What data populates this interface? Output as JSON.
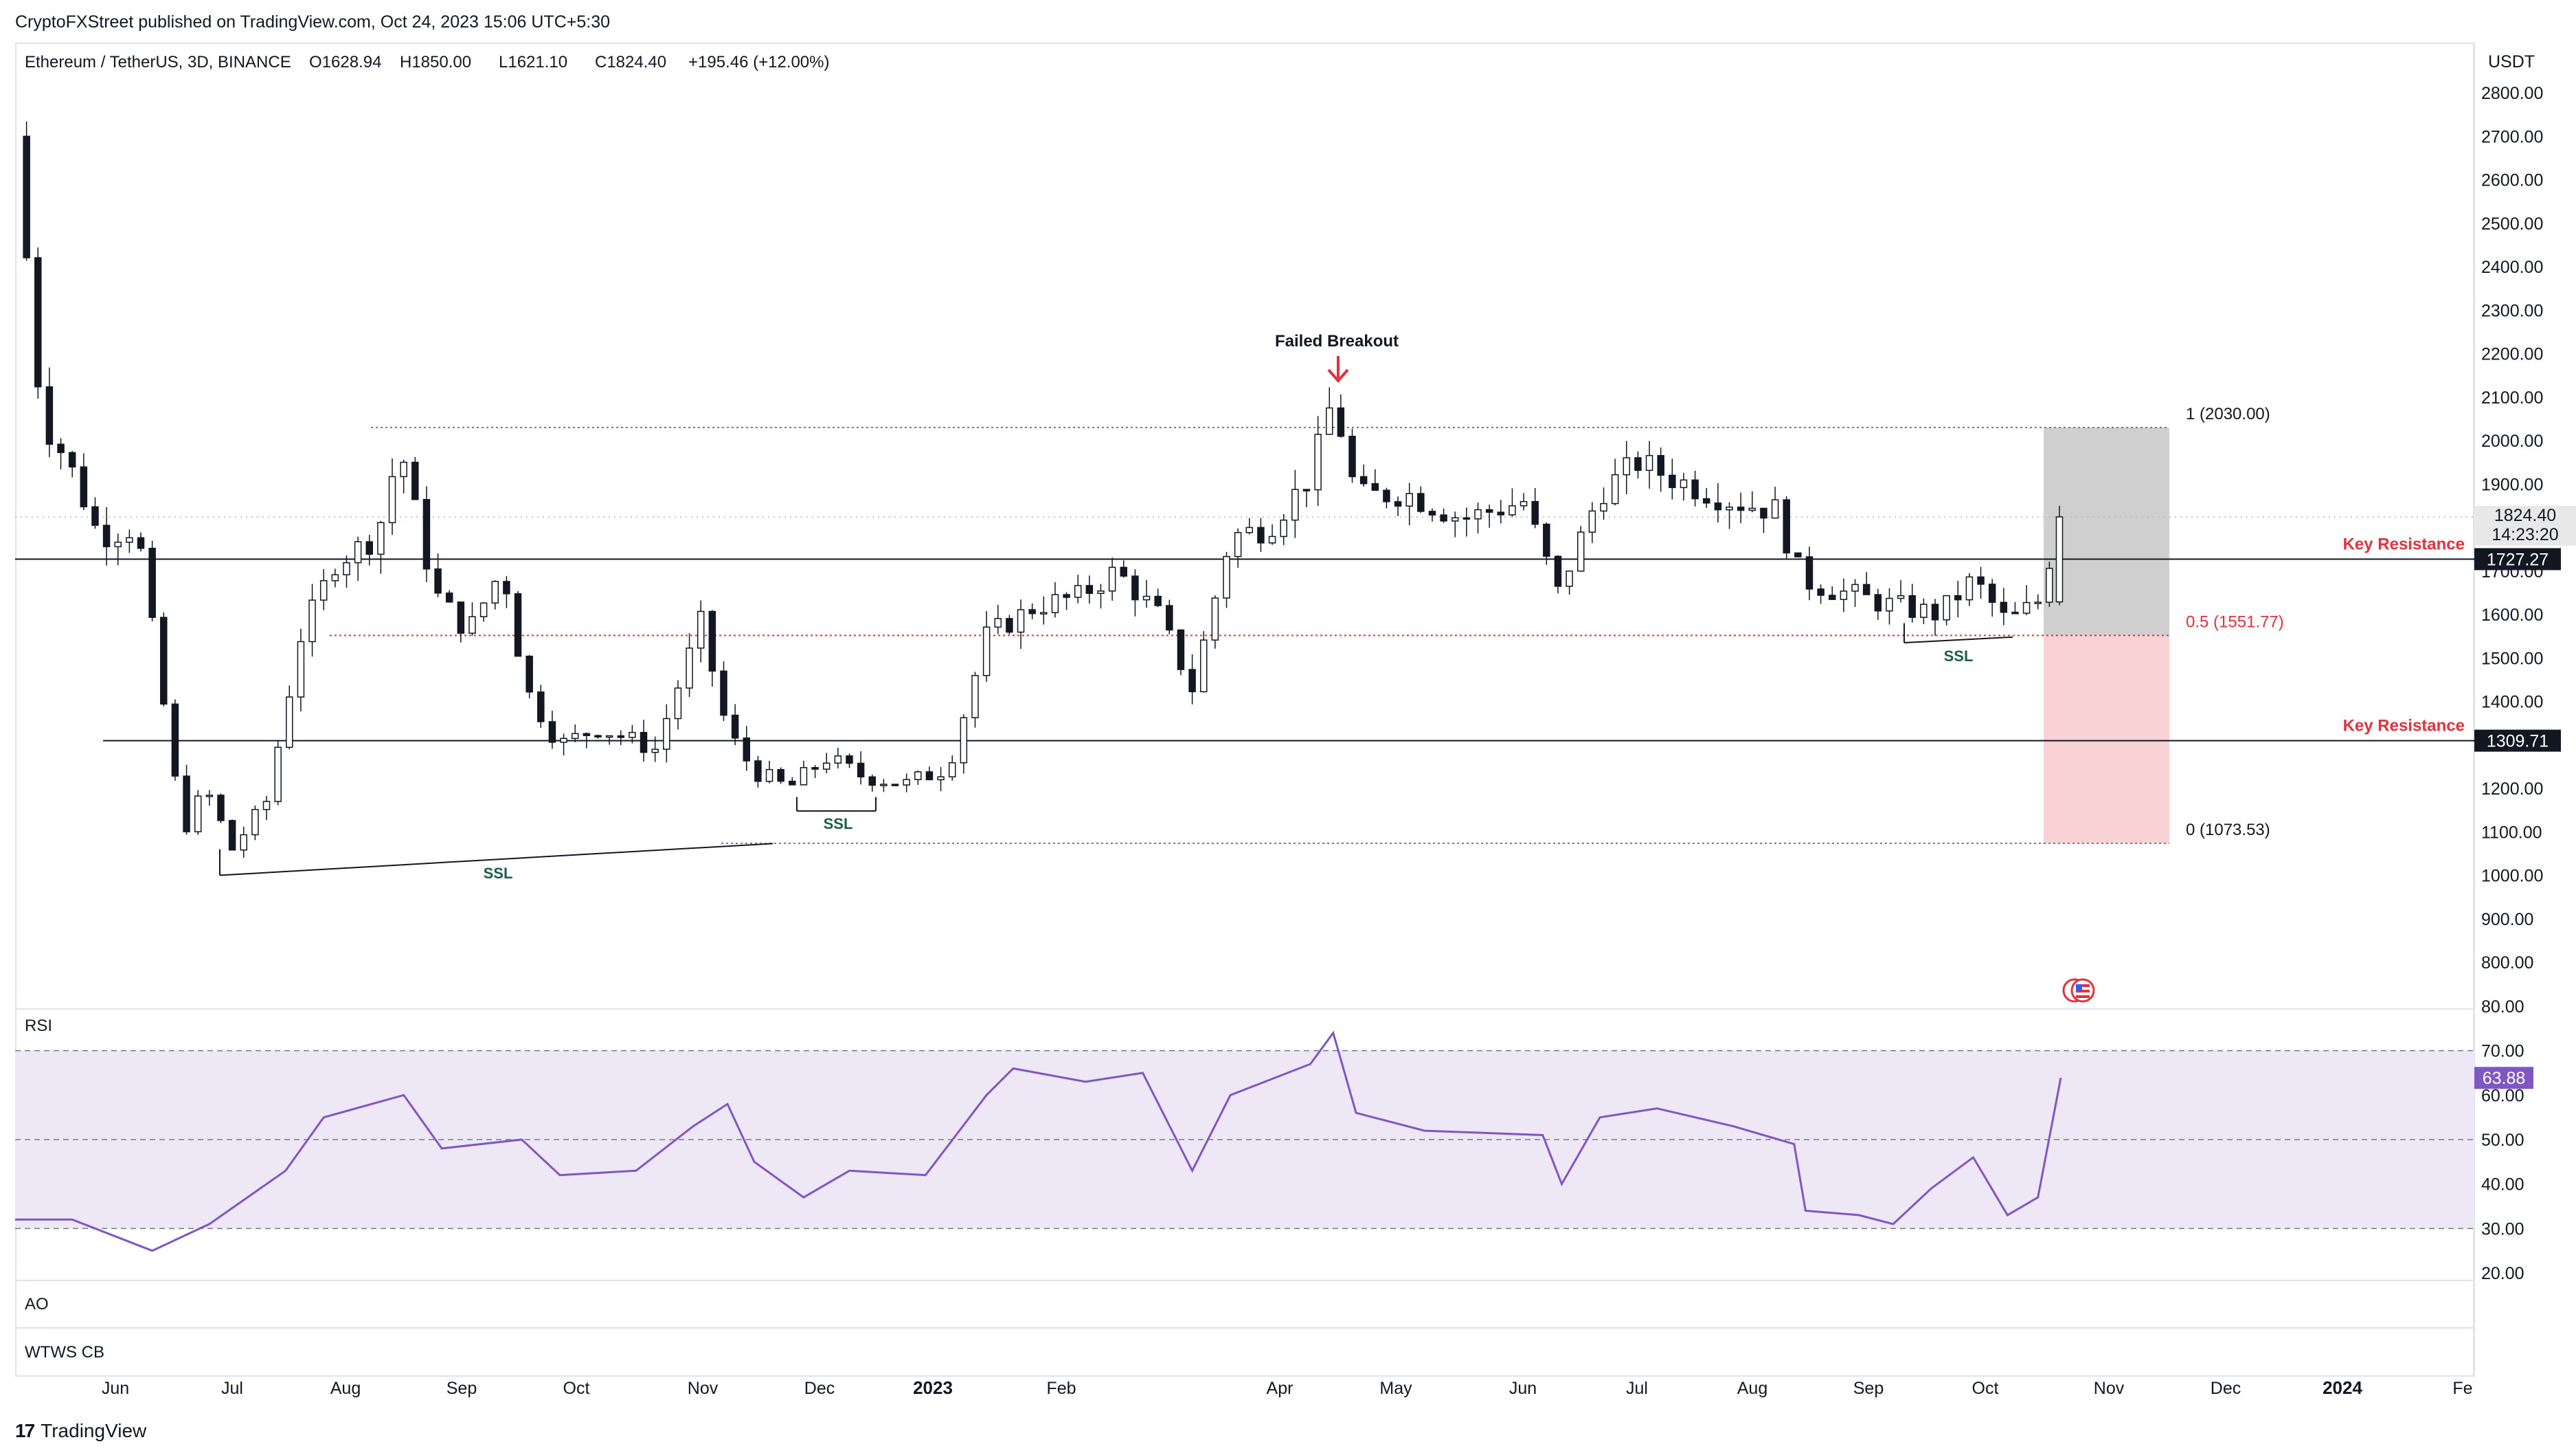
{
  "publisher_line": "CryptoFXStreet published on TradingView.com, Oct 24, 2023 15:06 UTC+5:30",
  "brand": {
    "logo": "17",
    "name": "TradingView"
  },
  "legend": {
    "symbol": "Ethereum / TetherUS, 3D, BINANCE",
    "open": "O1628.94",
    "high": "H1850.00",
    "low": "L1621.10",
    "close": "C1824.40",
    "change": "+195.46 (+12.00%)"
  },
  "price_axis": {
    "currency": "USDT",
    "ticks": [
      "2800.00",
      "2700.00",
      "2600.00",
      "2500.00",
      "2400.00",
      "2300.00",
      "2200.00",
      "2100.00",
      "2000.00",
      "1900.00",
      "1800.00",
      "1700.00",
      "1600.00",
      "1500.00",
      "1400.00",
      "1300.00",
      "1200.00",
      "1100.00",
      "1000.00",
      "900.00",
      "800.00"
    ],
    "last_price": "1824.40",
    "countdown": "14:23:20",
    "level_badges": [
      "1727.27",
      "1309.71"
    ]
  },
  "annotations": {
    "failed_breakout": "Failed Breakout",
    "key_resistance_upper": "Key Resistance",
    "key_resistance_lower": "Key Resistance",
    "ssl_labels": [
      "SSL",
      "SSL",
      "SSL"
    ],
    "fib_1": "1 (2030.00)",
    "fib_05": "0.5 (1551.77)",
    "fib_0": "0 (1073.53)"
  },
  "rsi": {
    "label": "RSI",
    "ticks": [
      "80.00",
      "70.00",
      "60.00",
      "50.00",
      "40.00",
      "30.00",
      "20.00"
    ],
    "current": "63.88"
  },
  "ao_label": "AO",
  "wtws_label": "WTWS CB",
  "time_axis": [
    "Jun",
    "Jul",
    "Aug",
    "Sep",
    "Oct",
    "Nov",
    "Dec",
    "2023",
    "Feb",
    "Apr",
    "May",
    "Jun",
    "Jul",
    "Aug",
    "Sep",
    "Oct",
    "Nov",
    "Dec",
    "2024",
    "Fe"
  ],
  "colors": {
    "accent_red": "#e0323c",
    "ssl_green": "#1b5e4a",
    "rsi_line": "#7e57c2",
    "rsi_band": "#ede7f6",
    "tp_zone": "#cfcfcf",
    "sl_zone": "#f9d2d5"
  },
  "chart_data": [
    {
      "type": "candlestick",
      "title": "Ethereum / TetherUS, 3D, BINANCE",
      "ylabel": "USDT",
      "ylim": [
        770,
        2870
      ],
      "x_range": [
        "2022-05-05",
        "2024-02-01"
      ],
      "key_levels": [
        {
          "label": "Key Resistance",
          "value": 1727.27
        },
        {
          "label": "Key Resistance",
          "value": 1309.71
        }
      ],
      "fib_levels": [
        {
          "label": "1",
          "value": 2030.0
        },
        {
          "label": "0.5",
          "value": 1551.77
        },
        {
          "label": "0",
          "value": 1073.53
        }
      ],
      "last": {
        "open": 1628.94,
        "high": 1850.0,
        "low": 1621.1,
        "close": 1824.4
      },
      "close_path": [
        [
          "2022-05-05",
          2700
        ],
        [
          "2022-05-12",
          2050
        ],
        [
          "2022-05-19",
          1950
        ],
        [
          "2022-05-27",
          1780
        ],
        [
          "2022-06-06",
          1800
        ],
        [
          "2022-06-12",
          1450
        ],
        [
          "2022-06-18",
          1100
        ],
        [
          "2022-06-24",
          1200
        ],
        [
          "2022-07-01",
          1060
        ],
        [
          "2022-07-10",
          1170
        ],
        [
          "2022-07-19",
          1550
        ],
        [
          "2022-07-28",
          1720
        ],
        [
          "2022-08-08",
          1780
        ],
        [
          "2022-08-14",
          1990
        ],
        [
          "2022-08-23",
          1650
        ],
        [
          "2022-09-01",
          1560
        ],
        [
          "2022-09-10",
          1710
        ],
        [
          "2022-09-16",
          1430
        ],
        [
          "2022-09-25",
          1300
        ],
        [
          "2022-10-05",
          1340
        ],
        [
          "2022-10-20",
          1290
        ],
        [
          "2022-11-01",
          1580
        ],
        [
          "2022-11-08",
          1330
        ],
        [
          "2022-11-15",
          1240
        ],
        [
          "2022-11-24",
          1200
        ],
        [
          "2022-12-04",
          1270
        ],
        [
          "2022-12-13",
          1230
        ],
        [
          "2022-12-25",
          1210
        ],
        [
          "2023-01-05",
          1250
        ],
        [
          "2023-01-15",
          1550
        ],
        [
          "2023-01-28",
          1620
        ],
        [
          "2023-02-08",
          1640
        ],
        [
          "2023-02-18",
          1700
        ],
        [
          "2023-03-01",
          1600
        ],
        [
          "2023-03-10",
          1430
        ],
        [
          "2023-03-20",
          1780
        ],
        [
          "2023-03-30",
          1800
        ],
        [
          "2023-04-10",
          1920
        ],
        [
          "2023-04-16",
          2100
        ],
        [
          "2023-04-22",
          1870
        ],
        [
          "2023-05-05",
          1880
        ],
        [
          "2023-05-20",
          1820
        ],
        [
          "2023-06-05",
          1860
        ],
        [
          "2023-06-14",
          1650
        ],
        [
          "2023-06-25",
          1880
        ],
        [
          "2023-07-05",
          1950
        ],
        [
          "2023-07-15",
          1910
        ],
        [
          "2023-07-30",
          1860
        ],
        [
          "2023-08-10",
          1840
        ],
        [
          "2023-08-17",
          1680
        ],
        [
          "2023-08-28",
          1650
        ],
        [
          "2023-09-10",
          1620
        ],
        [
          "2023-09-22",
          1600
        ],
        [
          "2023-10-01",
          1680
        ],
        [
          "2023-10-10",
          1580
        ],
        [
          "2023-10-18",
          1630
        ],
        [
          "2023-10-24",
          1824.4
        ]
      ]
    },
    {
      "type": "line",
      "title": "RSI",
      "ylim": [
        20,
        80
      ],
      "bands": [
        30,
        50,
        70
      ],
      "series": [
        {
          "name": "RSI",
          "values": [
            [
              "2022-05-05",
              32
            ],
            [
              "2022-05-20",
              32
            ],
            [
              "2022-06-10",
              25
            ],
            [
              "2022-06-25",
              31
            ],
            [
              "2022-07-15",
              43
            ],
            [
              "2022-07-25",
              55
            ],
            [
              "2022-08-15",
              60
            ],
            [
              "2022-08-25",
              48
            ],
            [
              "2022-09-15",
              50
            ],
            [
              "2022-09-25",
              42
            ],
            [
              "2022-10-15",
              43
            ],
            [
              "2022-10-30",
              53
            ],
            [
              "2022-11-08",
              58
            ],
            [
              "2022-11-15",
              45
            ],
            [
              "2022-11-28",
              37
            ],
            [
              "2022-12-10",
              43
            ],
            [
              "2022-12-30",
              42
            ],
            [
              "2023-01-15",
              60
            ],
            [
              "2023-01-22",
              66
            ],
            [
              "2023-02-10",
              63
            ],
            [
              "2023-02-25",
              65
            ],
            [
              "2023-03-10",
              43
            ],
            [
              "2023-03-20",
              60
            ],
            [
              "2023-04-10",
              67
            ],
            [
              "2023-04-16",
              74
            ],
            [
              "2023-04-22",
              56
            ],
            [
              "2023-05-10",
              52
            ],
            [
              "2023-06-10",
              51
            ],
            [
              "2023-06-15",
              40
            ],
            [
              "2023-06-25",
              55
            ],
            [
              "2023-07-10",
              57
            ],
            [
              "2023-07-30",
              53
            ],
            [
              "2023-08-15",
              49
            ],
            [
              "2023-08-18",
              34
            ],
            [
              "2023-09-01",
              33
            ],
            [
              "2023-09-10",
              31
            ],
            [
              "2023-09-20",
              39
            ],
            [
              "2023-10-01",
              46
            ],
            [
              "2023-10-10",
              33
            ],
            [
              "2023-10-18",
              37
            ],
            [
              "2023-10-24",
              63.88
            ]
          ]
        }
      ]
    }
  ]
}
